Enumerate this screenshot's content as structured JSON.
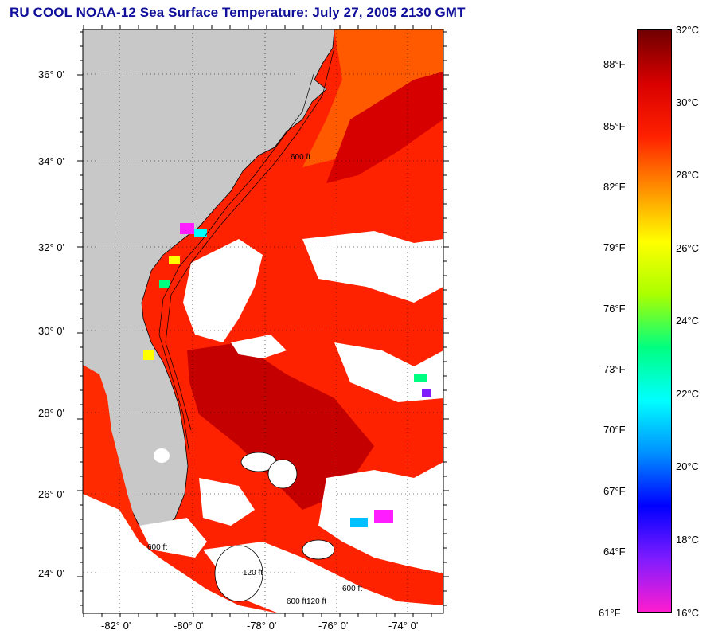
{
  "title": "RU COOL  NOAA-12  Sea Surface Temperature:  July 27, 2005 2130 GMT",
  "map": {
    "lat_labels": [
      "36° 0'",
      "34° 0'",
      "32° 0'",
      "30° 0'",
      "28° 0'",
      "26° 0'",
      "24° 0'"
    ],
    "lon_labels": [
      "-82° 0'",
      "-80° 0'",
      "-78° 0'",
      "-76° 0'",
      "-74° 0'"
    ],
    "contour_labels": [
      "600 ft",
      "120 ft",
      "600 ft",
      "600 ft",
      "600 ft",
      "120 ft"
    ],
    "colors": {
      "land": "#c8c8c8",
      "cloud": "#ffffff",
      "sea_warm": "#ff2000",
      "sea_hot": "#c80000",
      "sea_mid": "#ff6000",
      "coastline": "#000000"
    }
  },
  "colorbar": {
    "celsius_labels": [
      "32°C",
      "30°C",
      "28°C",
      "26°C",
      "24°C",
      "22°C",
      "20°C",
      "18°C",
      "16°C"
    ],
    "fahrenheit_labels": [
      "88°F",
      "85°F",
      "82°F",
      "79°F",
      "76°F",
      "73°F",
      "70°F",
      "67°F",
      "64°F",
      "61°F"
    ],
    "range_celsius": [
      16,
      32
    ],
    "gradient_colors": [
      "#ff1ccf",
      "#7f1cff",
      "#0000ff",
      "#0090ff",
      "#00ffff",
      "#00ff80",
      "#aaff00",
      "#ffff00",
      "#ff9000",
      "#ff2000",
      "#d80000",
      "#700000"
    ]
  }
}
